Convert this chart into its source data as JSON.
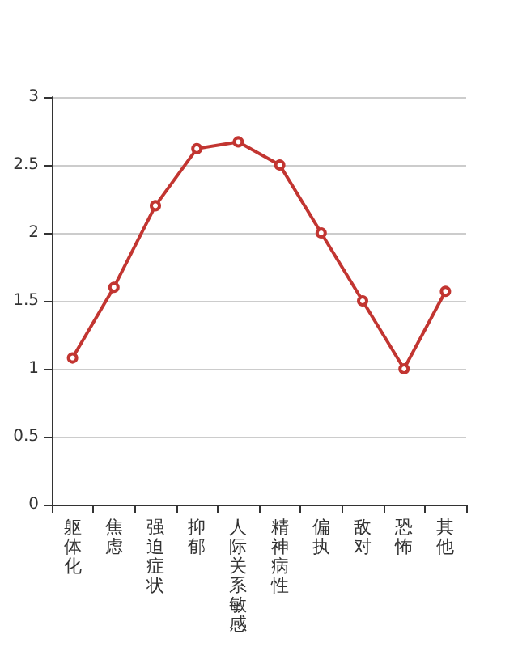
{
  "chart_data": {
    "type": "line",
    "categories": [
      "躯体化",
      "焦虑",
      "强迫症状",
      "抑郁",
      "人际关系敏感",
      "精神病性",
      "偏执",
      "敌对",
      "恐怖",
      "其他"
    ],
    "series": [
      {
        "color": "#c23531",
        "values": [
          1.08,
          1.6,
          2.2,
          2.62,
          2.67,
          2.5,
          2.0,
          1.5,
          1.0,
          1.57
        ]
      }
    ],
    "ylim": [
      0,
      3
    ],
    "yticks": [
      0,
      0.5,
      1,
      1.5,
      2,
      2.5,
      3
    ],
    "grid": "y",
    "marker": "circle",
    "line_style": "solid"
  }
}
